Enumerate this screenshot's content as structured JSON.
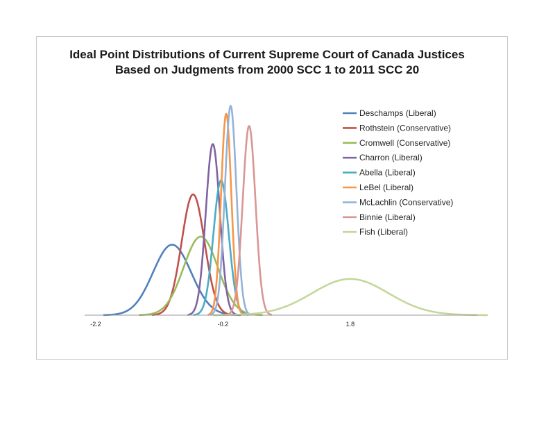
{
  "chart_data": {
    "type": "line",
    "title_lines": [
      "Ideal Point Distributions of Current Supreme Court of Canada Justices",
      "Based on Judgments from 2000 SCC 1 to 2011 SCC 20"
    ],
    "xlabel": "",
    "ylabel": "",
    "xlim": [
      -2.2,
      3.6
    ],
    "x_ticks": [
      -2.2,
      -0.2,
      1.8
    ],
    "x_tick_labels": [
      "-2.2",
      "-0.2",
      "1.8"
    ],
    "grid": false,
    "legend_position": "top-right",
    "series": [
      {
        "name": "Deschamps (Liberal)",
        "color": "#4F81BD",
        "mean": -1.0,
        "sd": 0.3,
        "peak": 0.35
      },
      {
        "name": "Rothstein (Conservative)",
        "color": "#C0504D",
        "mean": -0.67,
        "sd": 0.18,
        "peak": 0.6
      },
      {
        "name": "Cromwell (Conservative)",
        "color": "#9BBB59",
        "mean": -0.55,
        "sd": 0.27,
        "peak": 0.39
      },
      {
        "name": "Charron (Liberal)",
        "color": "#8064A2",
        "mean": -0.36,
        "sd": 0.11,
        "peak": 0.85
      },
      {
        "name": "Abella (Liberal)",
        "color": "#4BACC6",
        "mean": -0.23,
        "sd": 0.12,
        "peak": 0.67
      },
      {
        "name": "LeBel (Liberal)",
        "color": "#F79646",
        "mean": -0.15,
        "sd": 0.08,
        "peak": 1.0
      },
      {
        "name": "McLachlin (Conservative)",
        "color": "#95B3D7",
        "mean": -0.08,
        "sd": 0.09,
        "peak": 1.04
      },
      {
        "name": "Binnie (Liberal)",
        "color": "#D99694",
        "mean": 0.21,
        "sd": 0.1,
        "peak": 0.94
      },
      {
        "name": "Fish (Liberal)",
        "color": "#C4D79B",
        "mean": 1.8,
        "sd": 0.6,
        "peak": 0.18
      }
    ]
  }
}
